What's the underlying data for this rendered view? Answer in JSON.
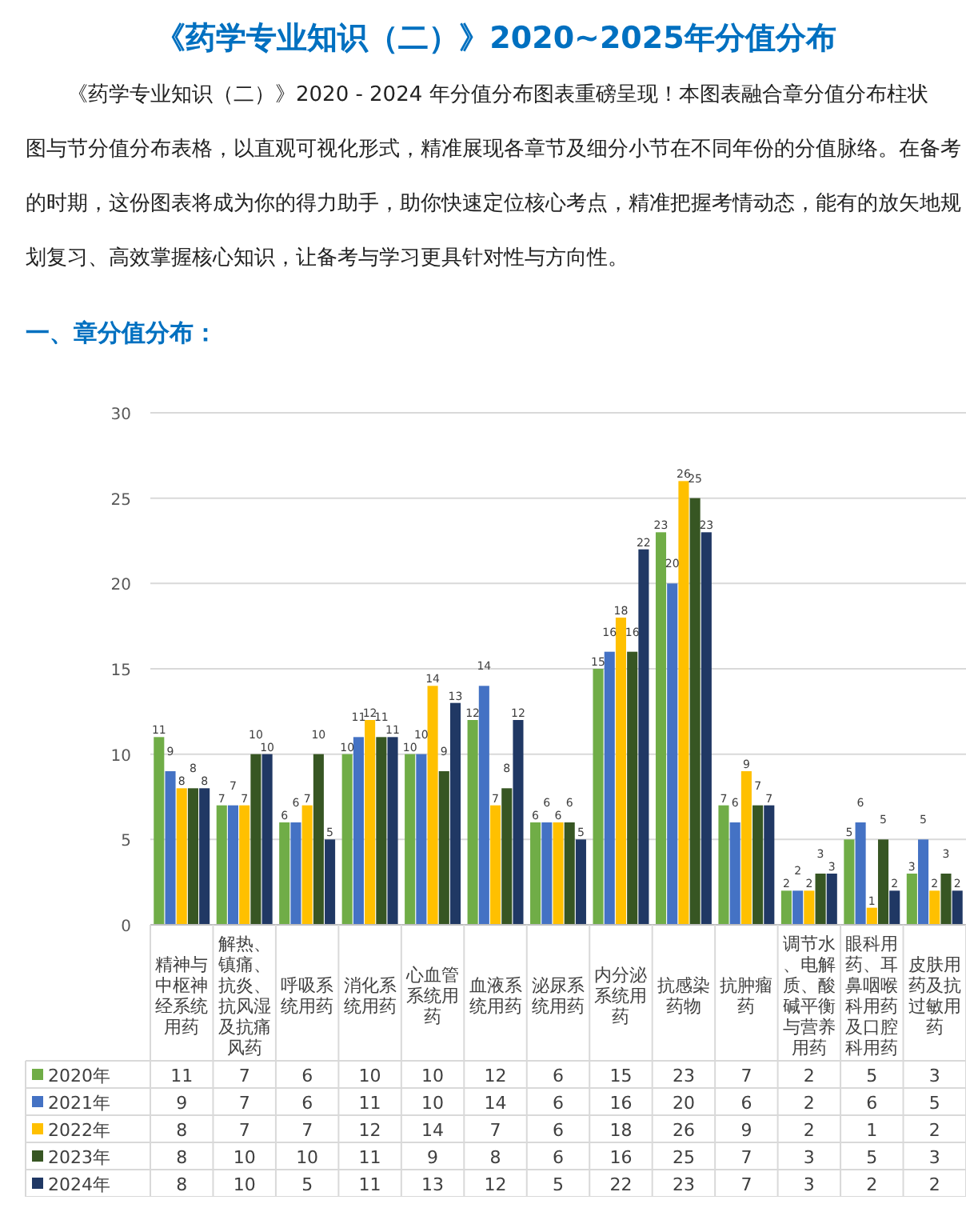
{
  "chart_data": {
    "type": "bar",
    "title": "《药学专业知识（二）》2020~2025年分值分布",
    "subtitle": "《药学专业知识（二）》2020 - 2024  年分值分布图表重磅呈现！本图表融合章分值分布柱状图与节分值分布表格，以直观可视化形式，精准展现各章节及细分小节在不同年份的分值脉络。在备考的时期，这份图表将成为你的得力助手，助你快速定位核心考点，精准把握考情动态，能有的放矢地规划复习、高效掌握核心知识，让备考与学习更具针对性与方向性。",
    "annotations": [
      "一、章分值分布："
    ],
    "categories": [
      "精神与中枢神经系统用药",
      "解热、镇痛、抗炎、抗风湿及抗痛风药",
      "呼吸系统用药",
      "消化系统用药",
      "心血管系统用药",
      "血液系统用药",
      "泌尿系统用药",
      "内分泌系统用药",
      "抗感染药物",
      "抗肿瘤药",
      "调节水、电解质、酸碱平衡与营养用药",
      "眼科用药、耳鼻咽喉科用药及口腔科用药",
      "皮肤用药及抗过敏用药"
    ],
    "series": [
      {
        "name": "2020年",
        "color": "#70ad47",
        "values": [
          11,
          7,
          6,
          10,
          10,
          12,
          6,
          15,
          23,
          7,
          2,
          5,
          3
        ],
        "value_labels": [
          "11",
          "7",
          "6",
          "10",
          "10",
          "12",
          "6",
          "15",
          "23",
          "7",
          "2",
          "5",
          "3"
        ]
      },
      {
        "name": "2021年",
        "color": "#4472c4",
        "values": [
          9,
          7,
          6,
          11,
          10,
          14,
          6,
          16,
          20,
          6,
          2,
          6,
          5
        ],
        "value_labels": [
          "9",
          "7",
          "6",
          "11",
          "10",
          "14",
          "6",
          "16",
          "20",
          "6",
          "2",
          "6",
          "5"
        ]
      },
      {
        "name": "2022年",
        "color": "#ffc000",
        "values": [
          8,
          7,
          7,
          12,
          14,
          7,
          6,
          18,
          26,
          9,
          2,
          1,
          2
        ],
        "value_labels": [
          "8",
          "7",
          "7",
          "12",
          "14",
          "7",
          "6",
          "18",
          "26",
          "9",
          "2",
          "1",
          "2"
        ]
      },
      {
        "name": "2023年",
        "color": "#375623",
        "values": [
          8,
          10,
          10,
          11,
          9,
          8,
          6,
          16,
          25,
          7,
          3,
          5,
          3
        ],
        "value_labels": [
          "8",
          "10",
          "10",
          "11",
          "9",
          "8",
          "6",
          "16",
          "25",
          "7",
          "3",
          "5",
          "3"
        ]
      },
      {
        "name": "2024年",
        "color": "#203864",
        "values": [
          8,
          10,
          5,
          11,
          13,
          12,
          5,
          22,
          23,
          7,
          3,
          2,
          2
        ],
        "value_labels": [
          "8",
          "10",
          "5",
          "11",
          "13",
          "12",
          "5",
          "22",
          "23",
          "7",
          "3",
          "2",
          "2"
        ]
      }
    ],
    "ylim": [
      0,
      30
    ],
    "yticks": [
      0,
      5,
      10,
      15,
      20,
      25,
      30
    ],
    "grid": "y",
    "data_labels": true,
    "legend": "bottom"
  }
}
